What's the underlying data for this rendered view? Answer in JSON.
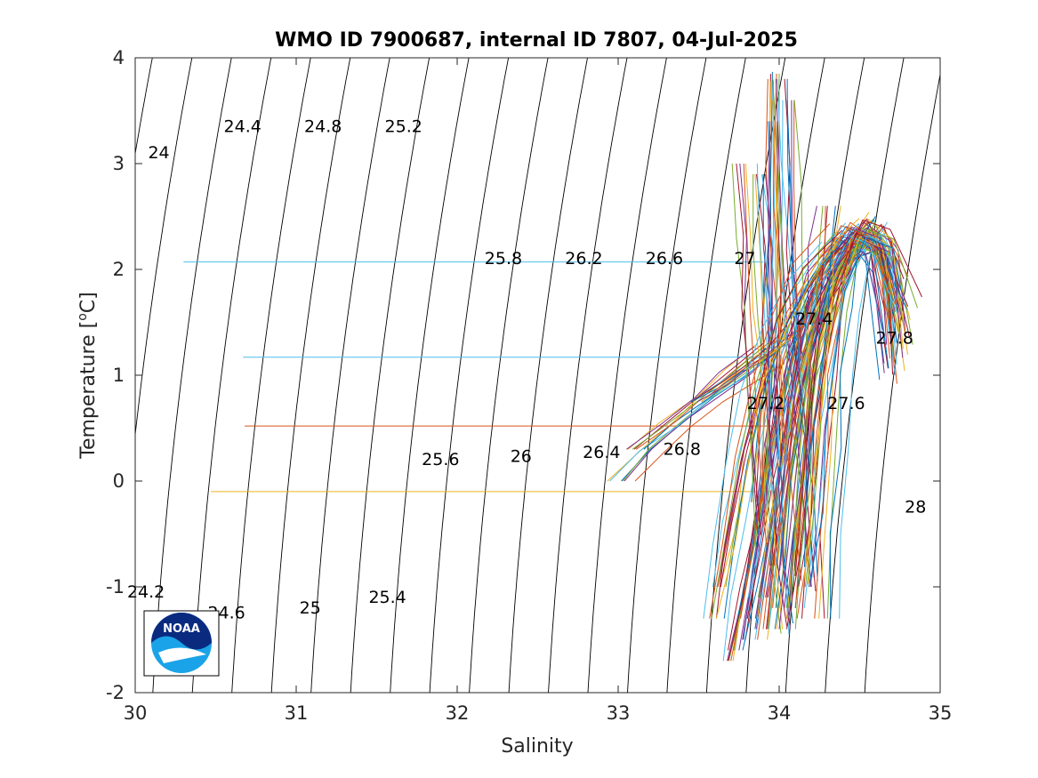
{
  "chart_data": {
    "type": "line",
    "title": "WMO ID 7900687, internal ID 7807, 04-Jul-2025",
    "xlabel": "Salinity",
    "ylabel_prefix": "Temperature [",
    "ylabel_sup": "o",
    "ylabel_suffix": "C]",
    "xlim": [
      30,
      35
    ],
    "ylim": [
      -2,
      4
    ],
    "xticks": [
      "30",
      "31",
      "32",
      "33",
      "34",
      "35"
    ],
    "yticks": [
      "-2",
      "-1",
      "0",
      "1",
      "2",
      "3",
      "4"
    ],
    "xtick_values": [
      30,
      31,
      32,
      33,
      34,
      35
    ],
    "ytick_values": [
      -2,
      -1,
      0,
      1,
      2,
      3,
      4
    ],
    "grid": false,
    "logo": "noaa-logo",
    "logo_text": "NOAA",
    "density_contours": {
      "levels": [
        24,
        24.2,
        24.4,
        24.6,
        24.8,
        25,
        25.2,
        25.4,
        25.6,
        25.8,
        26,
        26.2,
        26.4,
        26.6,
        26.8,
        27,
        27.2,
        27.4,
        27.6,
        27.8,
        28
      ],
      "color": "#000000",
      "labels": [
        {
          "text": "24",
          "s": 30.08,
          "t": 3.05
        },
        {
          "text": "24.2",
          "s": 29.95,
          "t": -1.1
        },
        {
          "text": "24.4",
          "s": 30.55,
          "t": 3.3
        },
        {
          "text": "24.6",
          "s": 30.45,
          "t": -1.3
        },
        {
          "text": "24.8",
          "s": 31.05,
          "t": 3.3
        },
        {
          "text": "25",
          "s": 31.02,
          "t": -1.25
        },
        {
          "text": "25.2",
          "s": 31.55,
          "t": 3.3
        },
        {
          "text": "25.4",
          "s": 31.45,
          "t": -1.15
        },
        {
          "text": "25.6",
          "s": 31.78,
          "t": 0.15
        },
        {
          "text": "25.8",
          "s": 32.17,
          "t": 2.05
        },
        {
          "text": "26",
          "s": 32.33,
          "t": 0.18
        },
        {
          "text": "26.2",
          "s": 32.67,
          "t": 2.05
        },
        {
          "text": "26.4",
          "s": 32.78,
          "t": 0.22
        },
        {
          "text": "26.6",
          "s": 33.17,
          "t": 2.05
        },
        {
          "text": "26.8",
          "s": 33.28,
          "t": 0.25
        },
        {
          "text": "27",
          "s": 33.72,
          "t": 2.05
        },
        {
          "text": "27.2",
          "s": 33.8,
          "t": 0.68
        },
        {
          "text": "27.4",
          "s": 34.1,
          "t": 1.48
        },
        {
          "text": "27.6",
          "s": 34.3,
          "t": 0.68
        },
        {
          "text": "27.8",
          "s": 34.6,
          "t": 1.3
        },
        {
          "text": "28",
          "s": 34.78,
          "t": -0.3
        }
      ]
    },
    "horizontal_segments": [
      {
        "t": 2.07,
        "s_start": 30.3,
        "s_end": 33.9,
        "color": "#4DBEEE"
      },
      {
        "t": 1.17,
        "s_start": 30.67,
        "s_end": 33.85,
        "color": "#4DBEEE"
      },
      {
        "t": 0.52,
        "s_start": 30.68,
        "s_end": 33.95,
        "color": "#D95319"
      },
      {
        "t": -0.1,
        "s_start": 30.47,
        "s_end": 34.0,
        "color": "#EDB120"
      }
    ],
    "profile_colors": [
      "#0072BD",
      "#D95319",
      "#EDB120",
      "#7E2F8E",
      "#77AC30",
      "#4DBEEE",
      "#A2142F"
    ],
    "series": [
      {
        "points": [
          [
            33.98,
            -1.2
          ],
          [
            34.02,
            -0.5
          ],
          [
            34.08,
            0.2
          ],
          [
            34.15,
            0.9
          ],
          [
            34.25,
            1.5
          ],
          [
            34.38,
            2.0
          ],
          [
            34.55,
            2.35
          ],
          [
            34.68,
            2.1
          ],
          [
            34.73,
            1.3
          ]
        ]
      },
      {
        "points": [
          [
            33.92,
            -1.4
          ],
          [
            33.98,
            -0.6
          ],
          [
            34.05,
            0.1
          ],
          [
            34.12,
            0.8
          ],
          [
            34.22,
            1.4
          ],
          [
            34.35,
            1.95
          ],
          [
            34.52,
            2.3
          ],
          [
            34.65,
            2.05
          ],
          [
            34.7,
            1.2
          ]
        ]
      },
      {
        "points": [
          [
            33.85,
            -1.5
          ],
          [
            33.93,
            -0.8
          ],
          [
            34.0,
            0.0
          ],
          [
            34.1,
            0.7
          ],
          [
            34.2,
            1.35
          ],
          [
            34.32,
            1.9
          ],
          [
            34.48,
            2.3
          ],
          [
            34.62,
            2.2
          ],
          [
            34.72,
            1.0
          ]
        ]
      },
      {
        "points": [
          [
            34.05,
            -1.3
          ],
          [
            34.1,
            -0.6
          ],
          [
            34.15,
            0.1
          ],
          [
            34.2,
            0.9
          ],
          [
            34.28,
            1.6
          ],
          [
            34.4,
            2.1
          ],
          [
            34.58,
            2.4
          ],
          [
            34.7,
            1.9
          ]
        ]
      },
      {
        "points": [
          [
            33.75,
            -1.6
          ],
          [
            33.82,
            -1.0
          ],
          [
            33.9,
            -0.3
          ],
          [
            33.98,
            0.5
          ],
          [
            34.08,
            1.2
          ],
          [
            34.2,
            1.8
          ],
          [
            34.4,
            2.2
          ],
          [
            34.6,
            2.3
          ],
          [
            34.72,
            1.6
          ]
        ]
      },
      {
        "points": [
          [
            33.88,
            -1.1
          ],
          [
            33.95,
            -0.4
          ],
          [
            34.02,
            0.4
          ],
          [
            34.12,
            1.1
          ],
          [
            34.25,
            1.7
          ],
          [
            34.42,
            2.15
          ],
          [
            34.6,
            2.25
          ],
          [
            34.74,
            1.4
          ]
        ]
      },
      {
        "points": [
          [
            33.7,
            -1.7
          ],
          [
            33.78,
            -1.1
          ],
          [
            33.86,
            -0.4
          ],
          [
            33.95,
            0.3
          ],
          [
            34.05,
            1.0
          ],
          [
            34.18,
            1.65
          ],
          [
            34.35,
            2.1
          ],
          [
            34.55,
            2.4
          ],
          [
            34.68,
            2.0
          ]
        ]
      },
      {
        "points": [
          [
            34.1,
            -1.2
          ],
          [
            34.15,
            -0.5
          ],
          [
            34.2,
            0.3
          ],
          [
            34.26,
            1.1
          ],
          [
            34.35,
            1.8
          ],
          [
            34.48,
            2.25
          ],
          [
            34.62,
            2.35
          ],
          [
            34.75,
            1.7
          ]
        ]
      },
      {
        "points": [
          [
            33.95,
            -0.8
          ],
          [
            34.0,
            0.0
          ],
          [
            34.06,
            0.8
          ],
          [
            34.14,
            1.5
          ],
          [
            34.26,
            2.0
          ],
          [
            34.45,
            2.35
          ],
          [
            34.62,
            2.2
          ],
          [
            34.72,
            1.5
          ]
        ]
      },
      {
        "points": [
          [
            33.8,
            -1.3
          ],
          [
            33.87,
            -0.7
          ],
          [
            33.95,
            0.0
          ],
          [
            34.04,
            0.7
          ],
          [
            34.15,
            1.4
          ],
          [
            34.3,
            2.0
          ],
          [
            34.5,
            2.4
          ],
          [
            34.66,
            2.2
          ],
          [
            34.73,
            1.1
          ]
        ]
      },
      {
        "points": [
          [
            33.9,
            -0.2
          ],
          [
            33.94,
            0.6
          ],
          [
            33.98,
            1.5
          ],
          [
            34.0,
            2.4
          ],
          [
            34.0,
            3.2
          ],
          [
            34.0,
            3.85
          ]
        ]
      },
      {
        "points": [
          [
            33.98,
            3.8
          ],
          [
            34.0,
            3.0
          ],
          [
            34.02,
            2.2
          ],
          [
            34.05,
            1.4
          ],
          [
            34.1,
            0.6
          ],
          [
            34.15,
            -0.2
          ],
          [
            34.2,
            -1.0
          ]
        ]
      },
      {
        "points": [
          [
            33.85,
            2.9
          ],
          [
            33.88,
            2.2
          ],
          [
            33.9,
            1.5
          ],
          [
            33.92,
            0.8
          ],
          [
            33.95,
            0.0
          ],
          [
            33.98,
            -0.8
          ],
          [
            34.02,
            -1.4
          ]
        ]
      },
      {
        "points": [
          [
            33.62,
            -1.0
          ],
          [
            33.7,
            -0.4
          ],
          [
            33.78,
            0.3
          ],
          [
            33.9,
            1.0
          ],
          [
            34.05,
            1.6
          ],
          [
            34.25,
            2.1
          ],
          [
            34.45,
            2.4
          ]
        ]
      },
      {
        "points": [
          [
            33.02,
            0.0
          ],
          [
            33.2,
            0.3
          ],
          [
            33.4,
            0.55
          ],
          [
            33.6,
            0.8
          ],
          [
            33.8,
            1.0
          ],
          [
            33.95,
            1.2
          ]
        ]
      },
      {
        "points": [
          [
            33.1,
            0.3
          ],
          [
            33.3,
            0.55
          ],
          [
            33.5,
            0.8
          ],
          [
            33.7,
            1.05
          ],
          [
            33.9,
            1.3
          ]
        ]
      },
      {
        "points": [
          [
            33.45,
            0.75
          ],
          [
            33.6,
            0.9
          ],
          [
            33.75,
            1.05
          ],
          [
            33.9,
            1.2
          ],
          [
            34.05,
            1.4
          ]
        ]
      },
      {
        "points": [
          [
            34.3,
            -1.3
          ],
          [
            34.32,
            -0.5
          ],
          [
            34.35,
            0.3
          ],
          [
            34.38,
            1.0
          ],
          [
            34.42,
            1.6
          ],
          [
            34.5,
            2.2
          ],
          [
            34.6,
            2.45
          ]
        ]
      },
      {
        "points": [
          [
            34.0,
            -1.4
          ],
          [
            34.05,
            -0.7
          ],
          [
            34.1,
            0.0
          ],
          [
            34.15,
            0.7
          ],
          [
            34.2,
            1.3
          ],
          [
            34.3,
            1.9
          ],
          [
            34.45,
            2.4
          ],
          [
            34.62,
            2.3
          ],
          [
            34.8,
            1.65
          ]
        ]
      },
      {
        "points": [
          [
            34.15,
            -1.0
          ],
          [
            34.2,
            -0.3
          ],
          [
            34.25,
            0.5
          ],
          [
            34.3,
            1.2
          ],
          [
            34.38,
            1.8
          ],
          [
            34.5,
            2.3
          ],
          [
            34.64,
            2.2
          ],
          [
            34.7,
            1.8
          ]
        ]
      },
      {
        "points": [
          [
            33.78,
            3.0
          ],
          [
            33.8,
            2.3
          ],
          [
            33.82,
            1.6
          ],
          [
            33.85,
            0.9
          ],
          [
            33.88,
            0.2
          ],
          [
            33.92,
            -0.6
          ]
        ]
      },
      {
        "points": [
          [
            34.05,
            3.6
          ],
          [
            34.07,
            2.8
          ],
          [
            34.08,
            2.0
          ],
          [
            34.1,
            1.2
          ]
        ]
      },
      {
        "points": [
          [
            34.3,
            2.6
          ],
          [
            34.28,
            2.2
          ],
          [
            34.25,
            1.6
          ],
          [
            34.2,
            0.9
          ],
          [
            34.15,
            0.0
          ],
          [
            34.1,
            -0.9
          ]
        ]
      },
      {
        "points": [
          [
            33.96,
            3.4
          ],
          [
            33.97,
            2.6
          ],
          [
            33.98,
            1.8
          ],
          [
            33.99,
            1.0
          ],
          [
            34.0,
            0.2
          ]
        ]
      },
      {
        "points": [
          [
            33.58,
            -1.3
          ],
          [
            33.66,
            -0.6
          ],
          [
            33.75,
            0.2
          ],
          [
            33.85,
            0.9
          ],
          [
            33.98,
            1.5
          ],
          [
            34.15,
            2.0
          ],
          [
            34.35,
            2.35
          ]
        ]
      }
    ]
  }
}
